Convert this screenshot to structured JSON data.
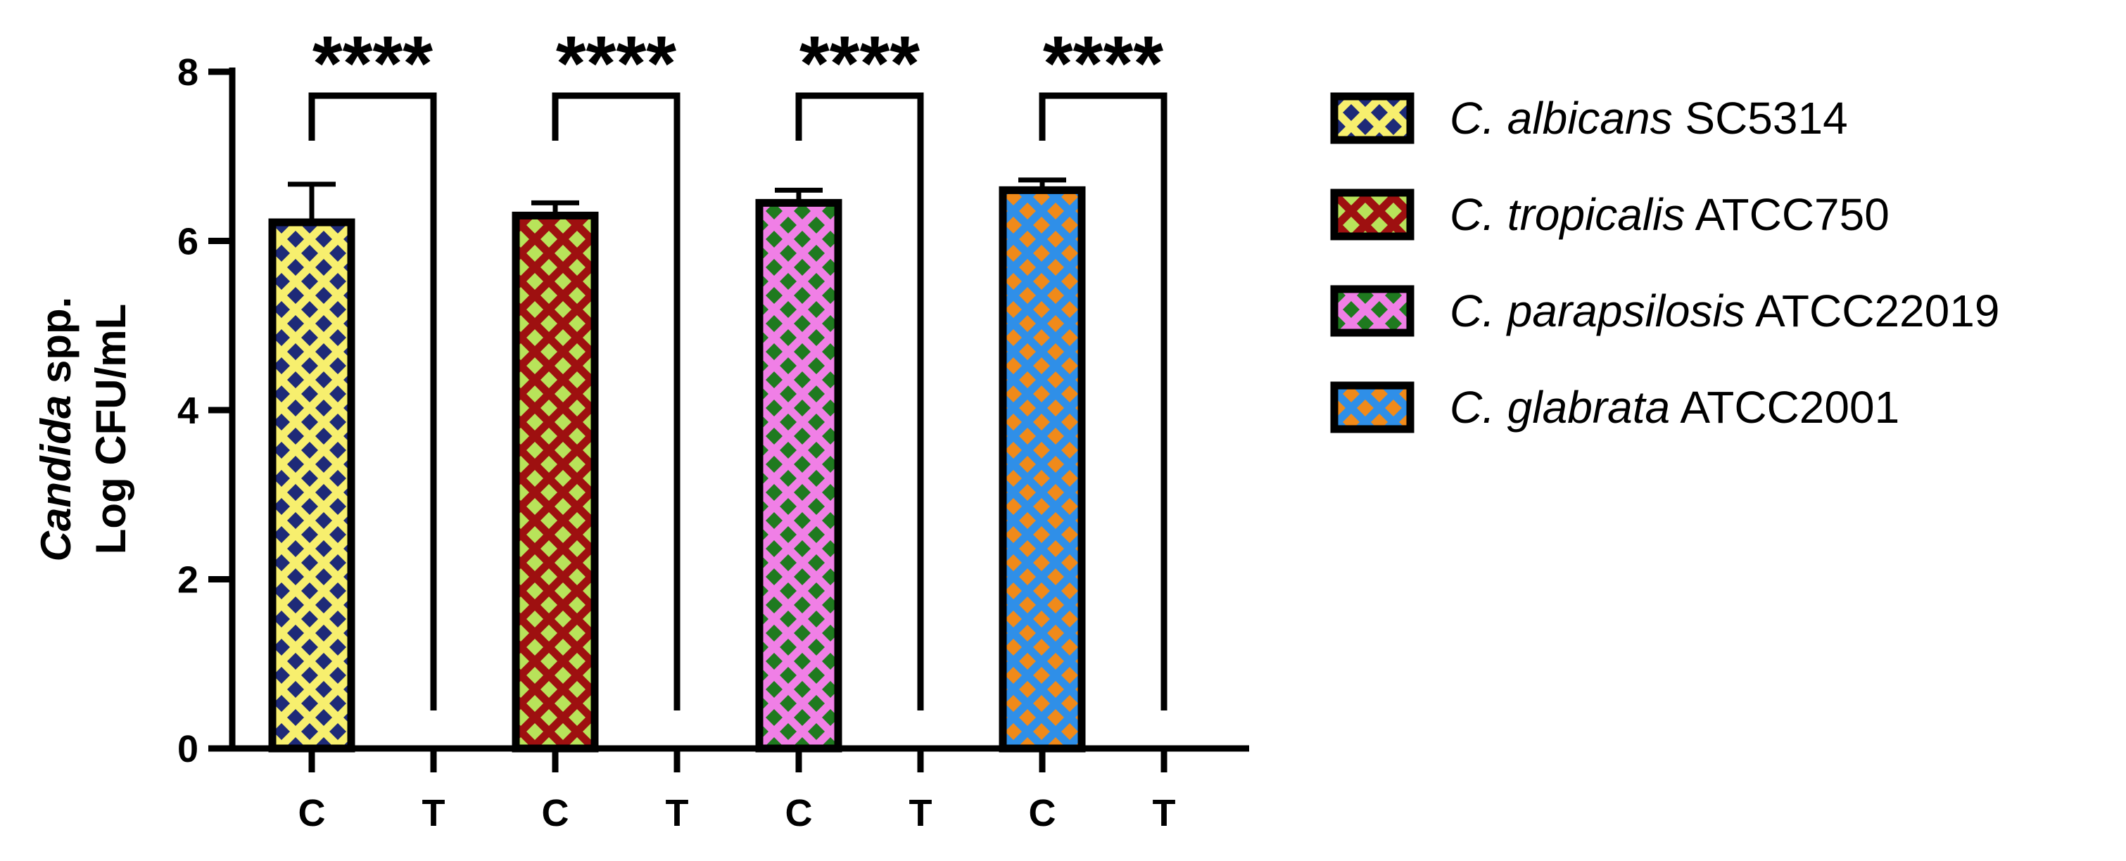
{
  "chart_data": {
    "type": "bar",
    "ylabel_italic": "Candida",
    "ylabel_rest": " spp.",
    "ylabel_line2": "Log CFU/mL",
    "xlabel": "",
    "ylim": [
      0,
      8
    ],
    "yticks": [
      "0",
      "2",
      "4",
      "6",
      "8"
    ],
    "categories": [
      "C",
      "T",
      "C",
      "T",
      "C",
      "T",
      "C",
      "T"
    ],
    "groups": [
      {
        "species": "C. albicans",
        "strain": "SC5314",
        "control": 6.22,
        "control_err": 0.45,
        "treated": 0,
        "significance": "****",
        "fill": "#f7ef6e",
        "dot": "#1e2a78"
      },
      {
        "species": "C. tropicalis",
        "strain": "ATCC750",
        "control": 6.3,
        "control_err": 0.15,
        "treated": 0,
        "significance": "****",
        "fill": "#9e1010",
        "dot": "#b8e35a"
      },
      {
        "species": "C. parapsilosis",
        "strain": "ATCC22019",
        "control": 6.45,
        "control_err": 0.15,
        "treated": 0,
        "significance": "****",
        "fill": "#f07fe6",
        "dot": "#1f7a1f"
      },
      {
        "species": "C. glabrata",
        "strain": "ATCC2001",
        "control": 6.6,
        "control_err": 0.12,
        "treated": 0,
        "significance": "****",
        "fill": "#2f8fe8",
        "dot": "#f08a1a"
      }
    ]
  }
}
